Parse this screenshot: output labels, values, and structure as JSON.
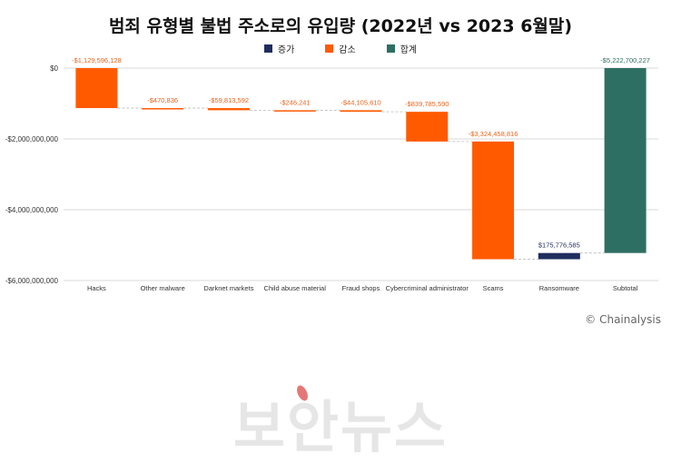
{
  "chart_data": {
    "type": "bar",
    "subtype": "waterfall",
    "title": "범죄 유형별 불법 주소로의 유입량 (2022년 vs 2023 6월말)",
    "legend": [
      {
        "label": "증가",
        "color": "#1f2e5e"
      },
      {
        "label": "감소",
        "color": "#ff5a00"
      },
      {
        "label": "합계",
        "color": "#2e6f63"
      }
    ],
    "legend_position": "top",
    "categories": [
      "Hacks",
      "Other malware",
      "Darknet markets",
      "Child abuse material",
      "Fraud shops",
      "Cybercriminal administrator",
      "Scams",
      "Ransomware",
      "Subtotal"
    ],
    "values": [
      -1129596128,
      -470836,
      -59813592,
      -246241,
      -44105610,
      -839785590,
      -3324458816,
      175776585,
      -5222700227
    ],
    "kinds": [
      "decrease",
      "decrease",
      "decrease",
      "decrease",
      "decrease",
      "decrease",
      "decrease",
      "increase",
      "total"
    ],
    "data_labels": [
      "-$1,129,596,128",
      "-$470,836",
      "-$59,813,592",
      "-$246,241",
      "-$44,105,610",
      "-$839,785,590",
      "-$3,324,458,816",
      "$175,776,585",
      "-$5,222,700,227"
    ],
    "y_ticks": [
      0,
      -2000000000,
      -4000000000,
      -6000000000
    ],
    "y_tick_labels": [
      "$0",
      "-$2,000,000,000",
      "-$4,000,000,000",
      "-$6,000,000,000"
    ],
    "ylim": [
      -6000000000,
      0
    ],
    "grid": true
  },
  "source": "© Chainalysis",
  "watermark": "보안뉴스"
}
